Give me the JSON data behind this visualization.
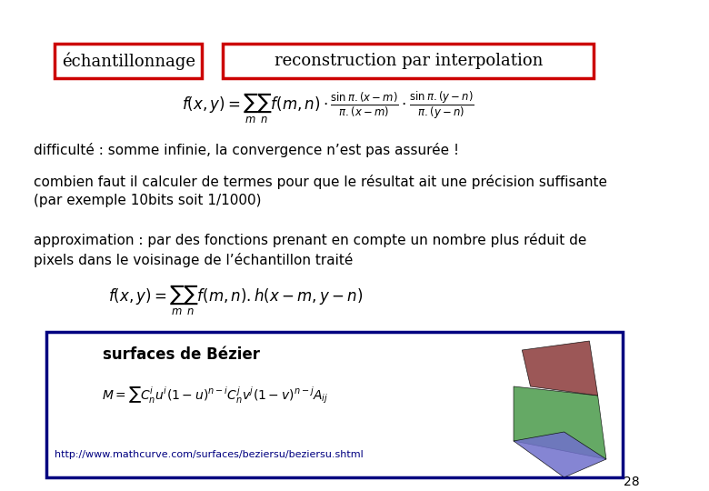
{
  "bg_color": "#ffffff",
  "box1_text": "échantillonnage",
  "box2_text": "reconstruction par interpolation",
  "box_color": "#cc0000",
  "formula1": "f(x,y) = \\sum_m \\sum_n f(m,n) \\cdot \\frac{\\sin\\pi.(x-m)}{\\pi.(x-m)} \\cdot \\frac{\\sin\\pi.(y-n)}{\\pi.(y-n)}",
  "difficulte_text": "difficulté : somme infinie, la convergence n’est pas assurée !",
  "combien_text": "combien faut il calculer de termes pour que le résultat ait une précision suffisante\n(par exemple 10bits soit 1/1000)",
  "approx_text": "approximation : par des fonctions prenant en compte un nombre plus réduit de\npixels dans le voisinage de l’échantillon traité",
  "formula2": "f(x,y) = \\sum_m \\sum_n f(m,n).h(x-m,y-n)",
  "bezier_title": "surfaces de Bézier",
  "bezier_formula": "M = \\sum C_n^i u^i (1-u)^{n-i} C_n^j v^j (1-v)^{n-j} A_{ij}",
  "bezier_url": "http://www.mathcurve.com/surfaces/beziersu/beziersu.shtml",
  "page_number": "28",
  "bezier_box_color": "#000080",
  "text_color": "#000000"
}
